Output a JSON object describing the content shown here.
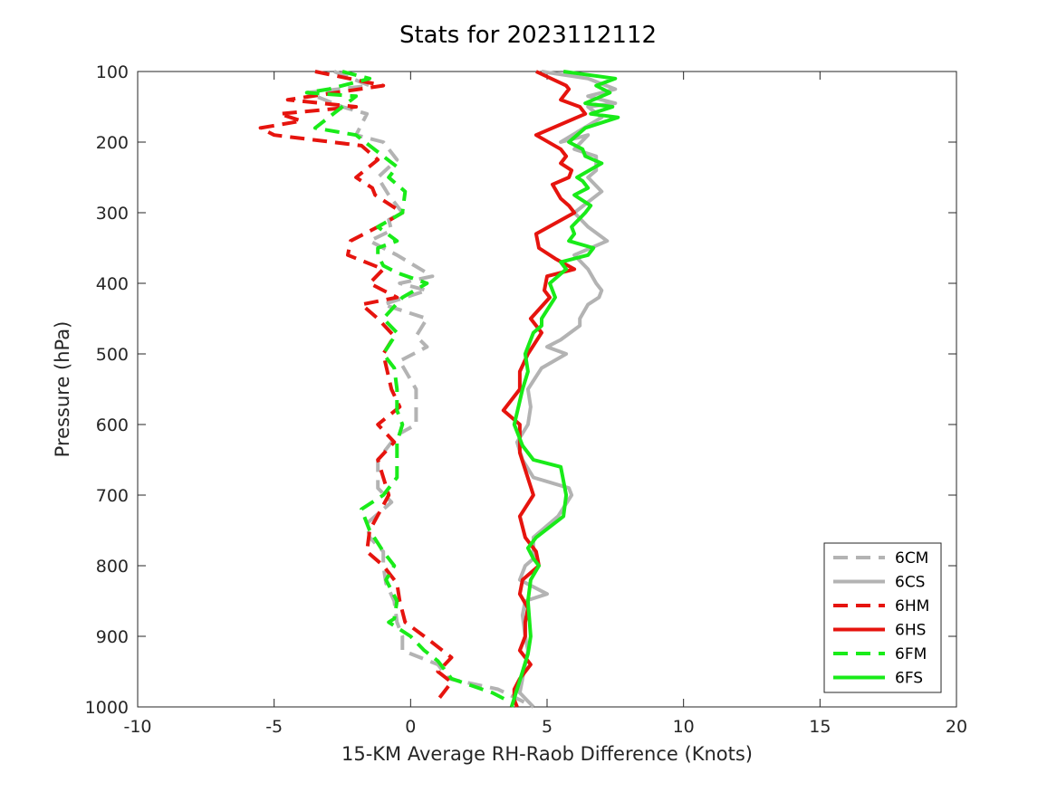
{
  "chart_data": {
    "type": "line",
    "title": "Stats for 2023112112",
    "xlabel": "15-KM Average RH-Raob Difference (Knots)",
    "ylabel": "Pressure (hPa)",
    "xlim": [
      -10,
      20
    ],
    "ylim": [
      100,
      1000
    ],
    "y_reversed": true,
    "xticks": [
      -10,
      -5,
      0,
      5,
      10,
      15,
      20
    ],
    "yticks": [
      100,
      200,
      300,
      400,
      500,
      600,
      700,
      800,
      900,
      1000
    ],
    "grid": false,
    "legend_position": "bottom-right",
    "series": [
      {
        "name": "6CM",
        "color": "#b3b3b3",
        "dash": true,
        "x": [
          -2.8,
          -1.5,
          -3.8,
          -2.5,
          -1.6,
          -2.0,
          -1.0,
          -0.5,
          -1.2,
          -0.8,
          -0.3,
          -0.8,
          -0.7,
          -1.5,
          -0.5,
          0.8,
          -0.4,
          0.6,
          -1.0,
          0.6,
          0.2,
          0.6,
          -0.4,
          0.2,
          0.2,
          0.2,
          -0.5,
          -1.2,
          -1.2,
          -0.7,
          -1.6,
          -1.5,
          -1.0,
          -1.0,
          -0.9,
          -0.6,
          -0.5,
          -0.3,
          -0.3,
          1.0,
          1.4,
          3.2,
          4.0,
          4.5
        ],
        "y": [
          100,
          120,
          130,
          150,
          160,
          190,
          200,
          225,
          250,
          275,
          300,
          310,
          325,
          340,
          360,
          390,
          400,
          410,
          430,
          450,
          475,
          490,
          510,
          550,
          575,
          600,
          615,
          650,
          690,
          710,
          740,
          760,
          780,
          800,
          825,
          850,
          880,
          900,
          920,
          940,
          960,
          975,
          990,
          1000
        ]
      },
      {
        "name": "6CS",
        "color": "#b3b3b3",
        "dash": false,
        "x": [
          4.8,
          6.5,
          7.5,
          6.5,
          7.5,
          6.5,
          7.0,
          5.5,
          6.5,
          6.0,
          6.8,
          6.8,
          6.5,
          7.0,
          6.0,
          6.5,
          7.2,
          6.0,
          6.5,
          6.8,
          7.0,
          6.9,
          6.5,
          6.2,
          6.2,
          5.5,
          5.0,
          5.7,
          4.8,
          4.3,
          4.4,
          4.3,
          3.9,
          4.1,
          4.5,
          5.8,
          5.9,
          5.4,
          4.5,
          4.5,
          4.2,
          4.0,
          5.0,
          4.2,
          4.1,
          4.2,
          4.3,
          4.2,
          4.1,
          4.0,
          4.5
        ],
        "y": [
          100,
          110,
          125,
          135,
          145,
          150,
          165,
          200,
          190,
          210,
          220,
          240,
          250,
          270,
          300,
          320,
          340,
          360,
          380,
          400,
          410,
          420,
          430,
          450,
          460,
          480,
          490,
          500,
          520,
          550,
          575,
          600,
          625,
          650,
          675,
          690,
          700,
          730,
          760,
          790,
          800,
          820,
          840,
          850,
          870,
          900,
          920,
          940,
          960,
          980,
          1000
        ]
      },
      {
        "name": "6HM",
        "color": "#e6140e",
        "dash": true,
        "x": [
          -3.5,
          -1.0,
          -4.5,
          -2.0,
          -4.8,
          -4.0,
          -5.5,
          -5.0,
          -1.8,
          -1.2,
          -2.0,
          -1.4,
          -1.3,
          -0.3,
          -1.2,
          -2.2,
          -2.3,
          -1.0,
          -1.5,
          -0.5,
          -1.8,
          -1.2,
          -0.6,
          -1.0,
          -0.7,
          -0.4,
          -1.2,
          -0.6,
          -1.2,
          -0.8,
          -1.5,
          -1.6,
          -1.0,
          -0.5,
          -0.4,
          -0.2,
          0.5,
          1.5,
          1.0,
          1.5,
          1.0
        ],
        "y": [
          100,
          120,
          140,
          150,
          160,
          170,
          180,
          190,
          205,
          225,
          250,
          265,
          275,
          300,
          320,
          340,
          360,
          380,
          400,
          420,
          430,
          450,
          475,
          500,
          550,
          575,
          600,
          625,
          650,
          700,
          750,
          780,
          800,
          825,
          850,
          880,
          900,
          930,
          950,
          965,
          990
        ]
      },
      {
        "name": "6HS",
        "color": "#e6140e",
        "dash": false,
        "x": [
          4.6,
          5.7,
          5.8,
          5.5,
          6.2,
          6.4,
          4.6,
          5.5,
          5.7,
          5.5,
          5.9,
          5.8,
          5.2,
          5.5,
          5.8,
          6.0,
          4.6,
          4.7,
          5.3,
          6.0,
          5.0,
          4.9,
          5.1,
          4.4,
          4.8,
          4.3,
          4.0,
          4.0,
          3.4,
          4.0,
          4.0,
          4.5,
          4.0,
          4.2,
          4.6,
          4.7,
          4.1,
          4.0,
          4.3,
          4.2,
          4.2,
          4.0,
          4.4,
          4.0,
          3.8,
          3.8,
          3.9
        ],
        "y": [
          100,
          120,
          125,
          140,
          150,
          160,
          190,
          210,
          220,
          230,
          240,
          250,
          260,
          280,
          290,
          300,
          330,
          350,
          365,
          380,
          390,
          410,
          420,
          450,
          470,
          500,
          525,
          550,
          580,
          600,
          640,
          700,
          730,
          760,
          780,
          800,
          820,
          840,
          860,
          880,
          900,
          920,
          940,
          960,
          975,
          990,
          1000
        ]
      },
      {
        "name": "6FM",
        "color": "#19eb19",
        "dash": true,
        "x": [
          -2.5,
          -1.5,
          -3.0,
          -3.8,
          -2.0,
          -2.5,
          -3.5,
          -2.0,
          -1.0,
          -0.5,
          -0.8,
          -0.2,
          -0.3,
          -1.2,
          -0.5,
          -1.2,
          -1.2,
          -1.0,
          -0.5,
          0.6,
          -0.3,
          -1.0,
          -0.5,
          -1.0,
          -0.6,
          -0.5,
          -0.5,
          -0.3,
          -0.5,
          -0.5,
          -0.5,
          -1.0,
          -1.8,
          -1.5,
          -1.0,
          -0.6,
          -0.9,
          -0.5,
          -0.6,
          -0.8,
          0.0,
          0.5,
          1.0,
          1.5,
          3.0,
          3.5
        ],
        "y": [
          100,
          110,
          125,
          130,
          135,
          150,
          180,
          190,
          220,
          235,
          250,
          270,
          300,
          320,
          340,
          350,
          360,
          375,
          385,
          400,
          420,
          450,
          470,
          500,
          520,
          550,
          580,
          600,
          625,
          650,
          675,
          700,
          720,
          750,
          780,
          800,
          820,
          850,
          875,
          880,
          900,
          920,
          935,
          960,
          980,
          990
        ]
      },
      {
        "name": "6FS",
        "color": "#19eb19",
        "dash": false,
        "x": [
          5.6,
          7.5,
          6.8,
          7.3,
          6.4,
          7.4,
          6.6,
          7.6,
          6.4,
          5.8,
          6.3,
          6.4,
          7.0,
          6.1,
          6.3,
          6.5,
          6.0,
          6.6,
          6.4,
          5.9,
          6.0,
          5.8,
          6.7,
          6.5,
          5.5,
          5.7,
          5.1,
          5.3,
          4.8,
          4.8,
          4.5,
          4.4,
          4.2,
          4.3,
          4.1,
          3.8,
          4.1,
          4.5,
          5.5,
          5.7,
          5.6,
          4.6,
          4.3,
          4.5,
          4.7,
          4.4,
          4.3,
          4.4,
          4.3,
          4.1,
          3.9,
          3.7
        ],
        "y": [
          100,
          110,
          120,
          130,
          145,
          150,
          160,
          165,
          180,
          200,
          210,
          220,
          230,
          250,
          255,
          265,
          275,
          290,
          300,
          320,
          330,
          340,
          350,
          360,
          370,
          380,
          400,
          420,
          450,
          460,
          470,
          480,
          500,
          525,
          550,
          600,
          630,
          650,
          660,
          700,
          730,
          760,
          775,
          790,
          800,
          820,
          850,
          900,
          925,
          950,
          975,
          1000
        ]
      }
    ]
  }
}
